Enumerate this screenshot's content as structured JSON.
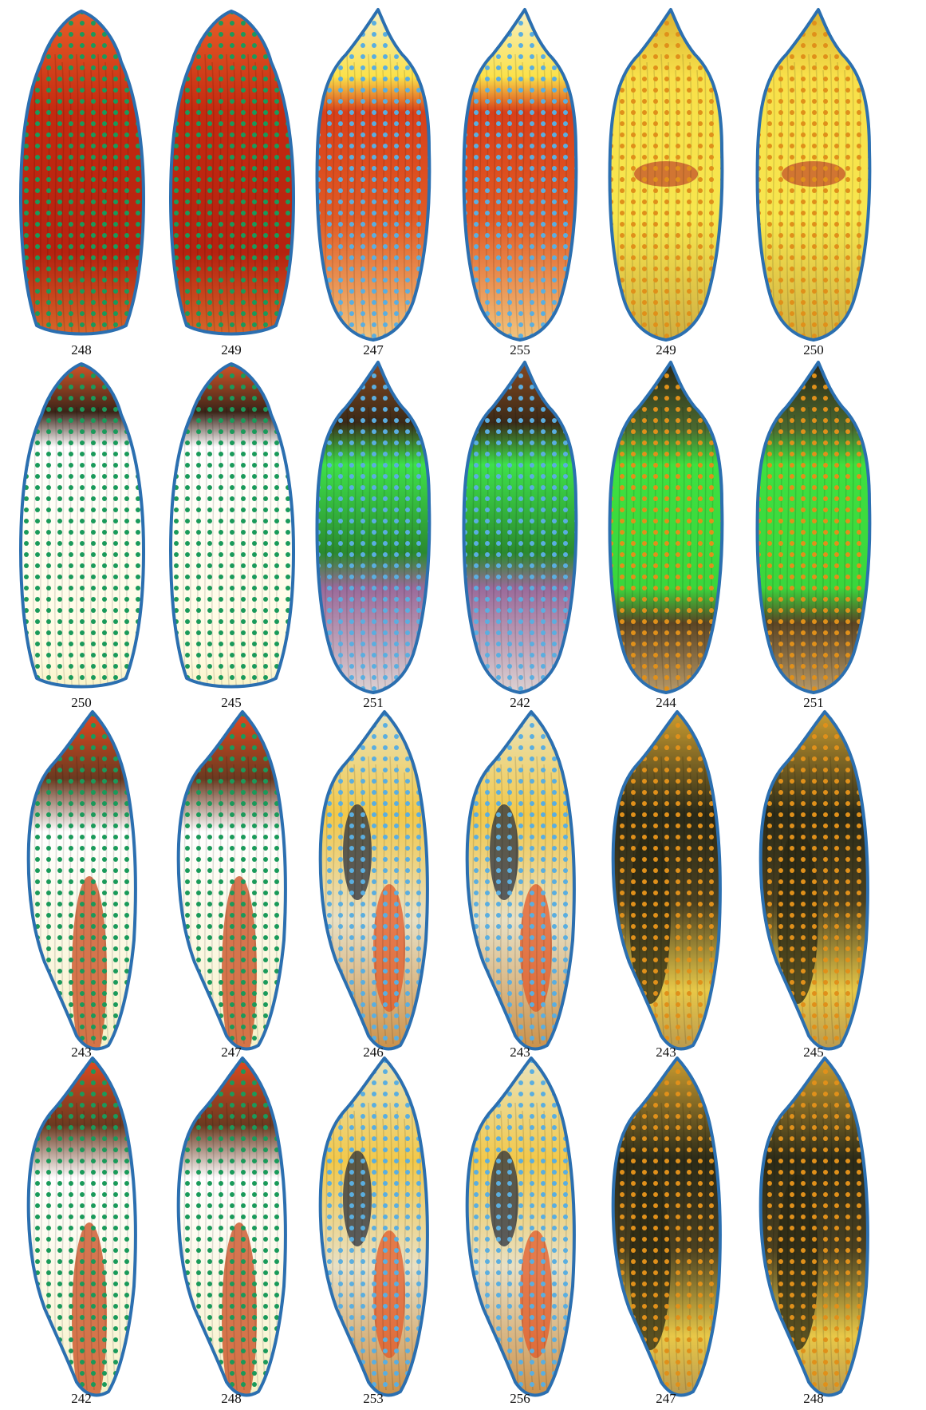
{
  "colors": {
    "outline": "#2b6fb0",
    "dot_green": "#1a9a5a",
    "dot_blue": "#5aaee0",
    "dot_orange": "#e0901a"
  },
  "rows": [
    [
      {
        "label": "248",
        "view": "back",
        "palette": "red",
        "dots": "green"
      },
      {
        "label": "249",
        "view": "back",
        "palette": "red",
        "dots": "green"
      },
      {
        "label": "247",
        "view": "belly",
        "palette": "red-yellow",
        "dots": "blue"
      },
      {
        "label": "255",
        "view": "belly",
        "palette": "red-yellow",
        "dots": "blue"
      },
      {
        "label": "249",
        "view": "belly",
        "palette": "gold",
        "dots": "orange"
      },
      {
        "label": "250",
        "view": "belly",
        "palette": "gold",
        "dots": "orange"
      }
    ],
    [
      {
        "label": "250",
        "view": "back",
        "palette": "pale",
        "dots": "green"
      },
      {
        "label": "245",
        "view": "back",
        "palette": "pale",
        "dots": "green"
      },
      {
        "label": "251",
        "view": "belly",
        "palette": "green",
        "dots": "blue"
      },
      {
        "label": "242",
        "view": "belly",
        "palette": "green",
        "dots": "blue"
      },
      {
        "label": "244",
        "view": "belly",
        "palette": "green-dark",
        "dots": "orange"
      },
      {
        "label": "251",
        "view": "belly",
        "palette": "green-dark",
        "dots": "orange"
      }
    ],
    [
      {
        "label": "243",
        "view": "side",
        "palette": "red-side",
        "dots": "green"
      },
      {
        "label": "247",
        "view": "side",
        "palette": "red-side",
        "dots": "green"
      },
      {
        "label": "246",
        "view": "side",
        "palette": "mixed",
        "dots": "blue"
      },
      {
        "label": "243",
        "view": "side",
        "palette": "mixed",
        "dots": "blue"
      },
      {
        "label": "243",
        "view": "side",
        "palette": "dark-gold",
        "dots": "orange"
      },
      {
        "label": "245",
        "view": "side",
        "palette": "dark-gold",
        "dots": "orange"
      }
    ],
    [
      {
        "label": "242",
        "view": "side",
        "palette": "red-side",
        "dots": "green"
      },
      {
        "label": "248",
        "view": "side",
        "palette": "red-side",
        "dots": "green"
      },
      {
        "label": "253",
        "view": "side",
        "palette": "mixed",
        "dots": "blue"
      },
      {
        "label": "256",
        "view": "side",
        "palette": "mixed",
        "dots": "blue"
      },
      {
        "label": "247",
        "view": "side",
        "palette": "dark-gold",
        "dots": "orange"
      },
      {
        "label": "248",
        "view": "side",
        "palette": "dark-gold",
        "dots": "orange"
      }
    ]
  ]
}
